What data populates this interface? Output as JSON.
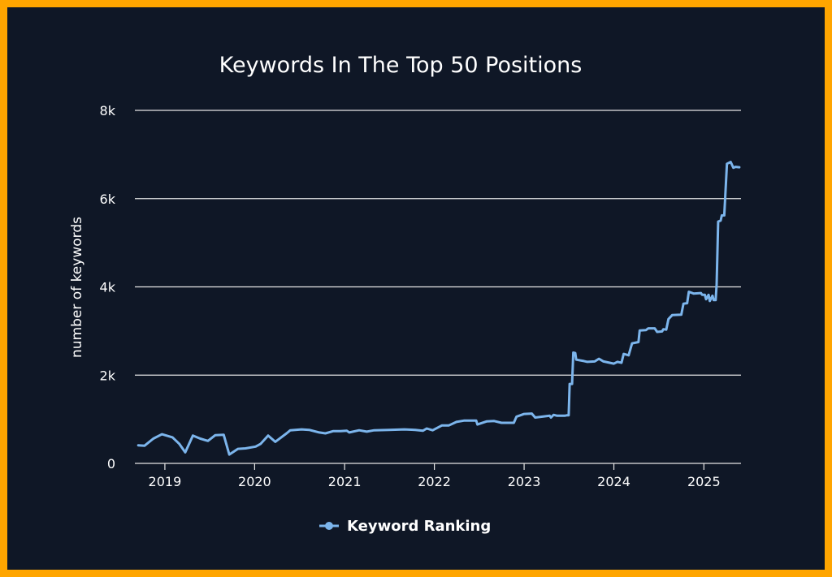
{
  "colors": {
    "background": "#0f1726",
    "border": "#ffa500",
    "line": "#7cb5ec",
    "grid": "#e6e6e6",
    "text": "#ffffff"
  },
  "chart_data": {
    "type": "line",
    "title": "Keywords In The Top 50 Positions",
    "ylabel": "number of keywords",
    "xlabel": "",
    "ylim": [
      0,
      8000
    ],
    "xlim": [
      "2018-09-01",
      "2025-06-01"
    ],
    "y_ticks": [
      {
        "value": 0,
        "label": "0"
      },
      {
        "value": 2000,
        "label": "2k"
      },
      {
        "value": 4000,
        "label": "4k"
      },
      {
        "value": 6000,
        "label": "6k"
      },
      {
        "value": 8000,
        "label": "8k"
      }
    ],
    "x_ticks": [
      {
        "value": "2019-01-01",
        "label": "2019"
      },
      {
        "value": "2020-01-01",
        "label": "2020"
      },
      {
        "value": "2021-01-01",
        "label": "2021"
      },
      {
        "value": "2022-01-01",
        "label": "2022"
      },
      {
        "value": "2023-01-01",
        "label": "2023"
      },
      {
        "value": "2024-01-01",
        "label": "2024"
      },
      {
        "value": "2025-01-01",
        "label": "2025"
      }
    ],
    "grid": true,
    "legend_position": "bottom-center",
    "series": [
      {
        "name": "Keyword Ranking",
        "color": "#7cb5ec",
        "points": [
          [
            "2018-09-15",
            410
          ],
          [
            "2018-10-10",
            400
          ],
          [
            "2018-11-15",
            560
          ],
          [
            "2018-12-20",
            660
          ],
          [
            "2019-02-01",
            590
          ],
          [
            "2019-03-01",
            440
          ],
          [
            "2019-03-25",
            250
          ],
          [
            "2019-04-25",
            630
          ],
          [
            "2019-05-25",
            560
          ],
          [
            "2019-06-25",
            510
          ],
          [
            "2019-07-25",
            640
          ],
          [
            "2019-08-28",
            650
          ],
          [
            "2019-09-20",
            200
          ],
          [
            "2019-10-25",
            330
          ],
          [
            "2019-11-25",
            340
          ],
          [
            "2020-01-05",
            380
          ],
          [
            "2020-01-25",
            440
          ],
          [
            "2020-02-25",
            630
          ],
          [
            "2020-03-25",
            490
          ],
          [
            "2020-05-10",
            680
          ],
          [
            "2020-05-25",
            750
          ],
          [
            "2020-07-10",
            770
          ],
          [
            "2020-08-10",
            760
          ],
          [
            "2020-09-20",
            700
          ],
          [
            "2020-10-15",
            680
          ],
          [
            "2020-11-15",
            730
          ],
          [
            "2020-12-15",
            730
          ],
          [
            "2021-01-10",
            740
          ],
          [
            "2021-01-20",
            700
          ],
          [
            "2021-03-01",
            750
          ],
          [
            "2021-04-01",
            720
          ],
          [
            "2021-05-01",
            750
          ],
          [
            "2021-07-01",
            760
          ],
          [
            "2021-09-01",
            770
          ],
          [
            "2021-10-15",
            760
          ],
          [
            "2021-11-15",
            740
          ],
          [
            "2021-12-01",
            790
          ],
          [
            "2021-12-25",
            750
          ],
          [
            "2022-02-01",
            860
          ],
          [
            "2022-03-01",
            860
          ],
          [
            "2022-04-01",
            940
          ],
          [
            "2022-05-01",
            970
          ],
          [
            "2022-06-20",
            970
          ],
          [
            "2022-06-25",
            880
          ],
          [
            "2022-08-01",
            950
          ],
          [
            "2022-09-01",
            960
          ],
          [
            "2022-10-01",
            920
          ],
          [
            "2022-11-20",
            920
          ],
          [
            "2022-12-01",
            1060
          ],
          [
            "2023-01-01",
            1120
          ],
          [
            "2023-02-01",
            1130
          ],
          [
            "2023-02-15",
            1040
          ],
          [
            "2023-04-15",
            1080
          ],
          [
            "2023-04-20",
            1040
          ],
          [
            "2023-05-01",
            1100
          ],
          [
            "2023-05-15",
            1080
          ],
          [
            "2023-06-15",
            1080
          ],
          [
            "2023-06-25",
            1090
          ],
          [
            "2023-07-01",
            1090
          ],
          [
            "2023-07-05",
            1800
          ],
          [
            "2023-07-15",
            1800
          ],
          [
            "2023-07-20",
            2510
          ],
          [
            "2023-07-28",
            2500
          ],
          [
            "2023-08-01",
            2350
          ],
          [
            "2023-09-01",
            2320
          ],
          [
            "2023-09-15",
            2300
          ],
          [
            "2023-10-15",
            2310
          ],
          [
            "2023-11-01",
            2370
          ],
          [
            "2023-11-20",
            2310
          ],
          [
            "2024-01-01",
            2260
          ],
          [
            "2024-01-15",
            2300
          ],
          [
            "2024-02-01",
            2280
          ],
          [
            "2024-02-10",
            2480
          ],
          [
            "2024-03-01",
            2450
          ],
          [
            "2024-03-15",
            2720
          ],
          [
            "2024-04-10",
            2750
          ],
          [
            "2024-04-15",
            3010
          ],
          [
            "2024-05-10",
            3020
          ],
          [
            "2024-05-20",
            3060
          ],
          [
            "2024-06-15",
            3060
          ],
          [
            "2024-06-25",
            2980
          ],
          [
            "2024-07-15",
            2990
          ],
          [
            "2024-07-20",
            3040
          ],
          [
            "2024-08-01",
            3030
          ],
          [
            "2024-08-10",
            3270
          ],
          [
            "2024-08-25",
            3360
          ],
          [
            "2024-10-01",
            3370
          ],
          [
            "2024-10-10",
            3620
          ],
          [
            "2024-10-25",
            3630
          ],
          [
            "2024-11-01",
            3890
          ],
          [
            "2024-11-20",
            3850
          ],
          [
            "2024-12-20",
            3860
          ],
          [
            "2024-12-25",
            3820
          ],
          [
            "2025-01-05",
            3820
          ],
          [
            "2025-01-10",
            3720
          ],
          [
            "2025-01-20",
            3820
          ],
          [
            "2025-01-25",
            3680
          ],
          [
            "2025-02-05",
            3800
          ],
          [
            "2025-02-10",
            3700
          ],
          [
            "2025-02-18",
            3700
          ],
          [
            "2025-02-22",
            4050
          ],
          [
            "2025-02-28",
            5480
          ],
          [
            "2025-03-10",
            5500
          ],
          [
            "2025-03-15",
            5620
          ],
          [
            "2025-03-25",
            5620
          ],
          [
            "2025-04-05",
            6790
          ],
          [
            "2025-04-20",
            6830
          ],
          [
            "2025-05-01",
            6700
          ],
          [
            "2025-05-10",
            6720
          ],
          [
            "2025-05-25",
            6710
          ]
        ]
      }
    ]
  }
}
